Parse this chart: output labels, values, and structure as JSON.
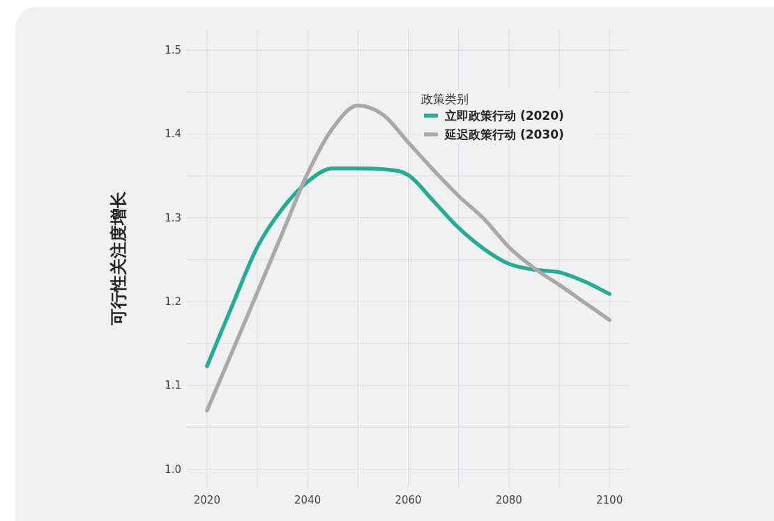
{
  "chart_data": {
    "type": "line",
    "ylabel": "可行性关注度增长",
    "legend_title": "政策类别",
    "legend": "top right",
    "grid": true,
    "line_style": "solid",
    "marker": "none",
    "x": [
      2020,
      2025,
      2030,
      2035,
      2040,
      2045,
      2050,
      2055,
      2060,
      2065,
      2070,
      2075,
      2080,
      2085,
      2090,
      2095,
      2100
    ],
    "xlim": [
      2016,
      2104
    ],
    "ylim": [
      0.978,
      1.525
    ],
    "xticks": [
      2020,
      {
        "value": 2030,
        "label": null
      },
      2040,
      {
        "value": 2050,
        "label": null
      },
      2060,
      {
        "value": 2070,
        "label": null
      },
      2080,
      {
        "value": 2090,
        "label": null
      },
      2100
    ],
    "yticks": [
      {
        "value": 1,
        "label": "1.0"
      },
      {
        "value": 1.05,
        "label": null
      },
      1.1,
      {
        "value": 1.15,
        "label": null
      },
      1.2,
      {
        "value": 1.25,
        "label": null
      },
      1.3,
      {
        "value": 1.35,
        "label": null
      },
      1.4,
      {
        "value": 1.45,
        "label": null
      },
      1.5
    ],
    "series": [
      {
        "name": "立即政策行动 (2020)",
        "color": "#26ab94",
        "values": [
          1.123,
          1.195,
          1.265,
          1.311,
          1.343,
          1.359,
          1.359,
          1.358,
          1.351,
          1.32,
          1.288,
          1.263,
          1.245,
          1.238,
          1.235,
          1.224,
          1.209
        ]
      },
      {
        "name": "延迟政策行动 (2030)",
        "color": "#a9a9aa",
        "values": [
          1.07,
          1.14,
          1.211,
          1.282,
          1.353,
          1.407,
          1.434,
          1.423,
          1.39,
          1.357,
          1.326,
          1.299,
          1.265,
          1.24,
          1.22,
          1.199,
          1.178
        ]
      }
    ]
  }
}
